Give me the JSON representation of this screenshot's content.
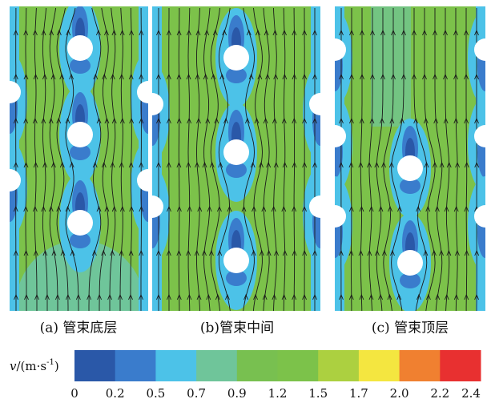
{
  "panels": [
    {
      "caption": "(a) 管束底层"
    },
    {
      "caption": "(b)管束中间"
    },
    {
      "caption": "(c) 管束顶层"
    }
  ],
  "colorbar": {
    "symbol": "v",
    "unit": "/(m·s",
    "unit_exponent": "-1",
    "unit_end": ")",
    "colors": [
      "#2a58a8",
      "#3a7ccc",
      "#4cc2e8",
      "#6fc59a",
      "#78c050",
      "#7cc24a",
      "#acd040",
      "#f4e640",
      "#f08030",
      "#e83030"
    ],
    "ticks": [
      0,
      0.2,
      0.5,
      0.7,
      0.9,
      1.2,
      1.5,
      1.7,
      {
        "value": 2,
        "label": "2.0"
      },
      2.2,
      2.4
    ]
  }
}
